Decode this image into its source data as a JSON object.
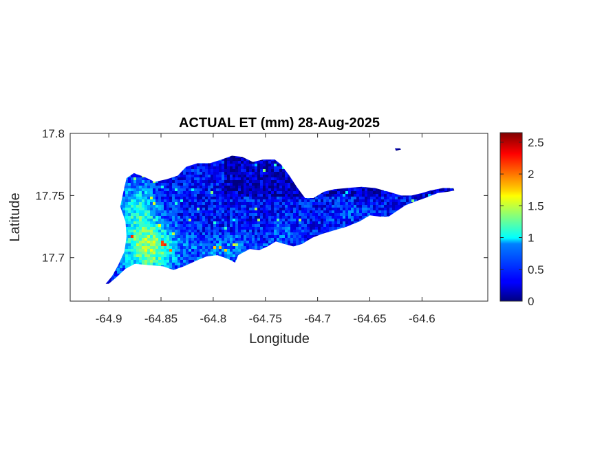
{
  "chart_data": {
    "type": "heatmap",
    "title": "ACTUAL ET (mm) 28-Aug-2025",
    "xlabel": "Longitude",
    "ylabel": "Latitude",
    "xlim": [
      -64.937,
      -64.537
    ],
    "ylim": [
      17.665,
      17.8
    ],
    "x_ticks": [
      -64.9,
      -64.85,
      -64.8,
      -64.75,
      -64.7,
      -64.65,
      -64.6
    ],
    "x_tick_labels": [
      "-64.9",
      "-64.85",
      "-64.8",
      "-64.75",
      "-64.7",
      "-64.65",
      "-64.6"
    ],
    "y_ticks": [
      17.7,
      17.75,
      17.8
    ],
    "y_tick_labels": [
      "17.7",
      "17.75",
      "17.8"
    ],
    "colorbar": {
      "colormap": "jet",
      "range": [
        0,
        2.65
      ],
      "ticks": [
        0,
        0.5,
        1,
        1.5,
        2,
        2.5
      ],
      "tick_labels": [
        "0",
        "0.5",
        "1",
        "1.5",
        "2",
        "2.5"
      ]
    },
    "region_outline": [
      [
        -64.9,
        17.679
      ],
      [
        -64.893,
        17.684
      ],
      [
        -64.884,
        17.691
      ],
      [
        -64.875,
        17.695
      ],
      [
        -64.862,
        17.694
      ],
      [
        -64.848,
        17.693
      ],
      [
        -64.838,
        17.69
      ],
      [
        -64.828,
        17.693
      ],
      [
        -64.815,
        17.698
      ],
      [
        -64.806,
        17.701
      ],
      [
        -64.796,
        17.702
      ],
      [
        -64.786,
        17.699
      ],
      [
        -64.779,
        17.696
      ],
      [
        -64.776,
        17.702
      ],
      [
        -64.765,
        17.707
      ],
      [
        -64.756,
        17.706
      ],
      [
        -64.748,
        17.709
      ],
      [
        -64.74,
        17.713
      ],
      [
        -64.732,
        17.711
      ],
      [
        -64.723,
        17.709
      ],
      [
        -64.715,
        17.711
      ],
      [
        -64.705,
        17.716
      ],
      [
        -64.696,
        17.719
      ],
      [
        -64.684,
        17.722
      ],
      [
        -64.672,
        17.725
      ],
      [
        -64.66,
        17.729
      ],
      [
        -64.65,
        17.734
      ],
      [
        -64.64,
        17.733
      ],
      [
        -64.632,
        17.733
      ],
      [
        -64.625,
        17.737
      ],
      [
        -64.616,
        17.742
      ],
      [
        -64.607,
        17.745
      ],
      [
        -64.597,
        17.748
      ],
      [
        -64.585,
        17.752
      ],
      [
        -64.575,
        17.753
      ],
      [
        -64.569,
        17.754
      ],
      [
        -64.57,
        17.756
      ],
      [
        -64.58,
        17.756
      ],
      [
        -64.592,
        17.754
      ],
      [
        -64.6,
        17.752
      ],
      [
        -64.61,
        17.75
      ],
      [
        -64.62,
        17.75
      ],
      [
        -64.632,
        17.753
      ],
      [
        -64.645,
        17.756
      ],
      [
        -64.658,
        17.757
      ],
      [
        -64.672,
        17.756
      ],
      [
        -64.684,
        17.755
      ],
      [
        -64.694,
        17.753
      ],
      [
        -64.704,
        17.748
      ],
      [
        -64.712,
        17.748
      ],
      [
        -64.72,
        17.757
      ],
      [
        -64.727,
        17.766
      ],
      [
        -64.735,
        17.775
      ],
      [
        -64.741,
        17.779
      ],
      [
        -64.752,
        17.779
      ],
      [
        -64.762,
        17.777
      ],
      [
        -64.772,
        17.781
      ],
      [
        -64.782,
        17.782
      ],
      [
        -64.792,
        17.779
      ],
      [
        -64.803,
        17.776
      ],
      [
        -64.815,
        17.776
      ],
      [
        -64.826,
        17.773
      ],
      [
        -64.834,
        17.766
      ],
      [
        -64.845,
        17.763
      ],
      [
        -64.856,
        17.761
      ],
      [
        -64.866,
        17.765
      ],
      [
        -64.876,
        17.768
      ],
      [
        -64.883,
        17.764
      ],
      [
        -64.886,
        17.753
      ],
      [
        -64.889,
        17.741
      ],
      [
        -64.884,
        17.729
      ],
      [
        -64.883,
        17.717
      ],
      [
        -64.885,
        17.705
      ],
      [
        -64.891,
        17.694
      ],
      [
        -64.897,
        17.685
      ],
      [
        -64.903,
        17.679
      ]
    ],
    "islet_outline": [
      [
        -64.626,
        17.788
      ],
      [
        -64.621,
        17.788
      ],
      [
        -64.62,
        17.787
      ],
      [
        -64.625,
        17.786
      ]
    ]
  }
}
